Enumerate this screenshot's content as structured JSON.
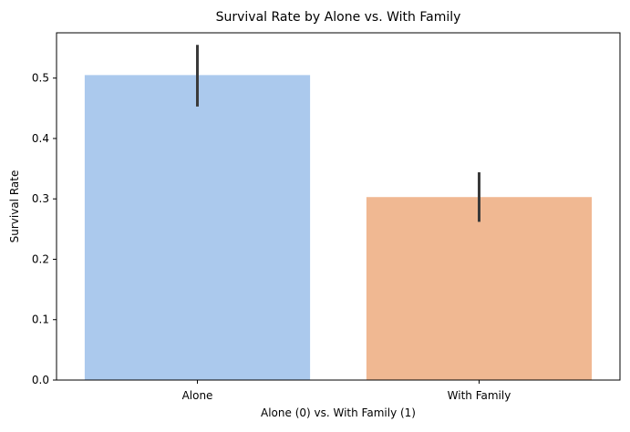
{
  "chart_data": {
    "type": "bar",
    "title": "Survival Rate by Alone vs. With Family",
    "xlabel": "Alone (0) vs. With Family (1)",
    "ylabel": "Survival Rate",
    "categories": [
      "Alone",
      "With Family"
    ],
    "values": [
      0.505,
      0.303
    ],
    "error_bars": [
      {
        "low": 0.453,
        "high": 0.555
      },
      {
        "low": 0.262,
        "high": 0.344
      }
    ],
    "colors": [
      "#abc9ed",
      "#f0b892"
    ],
    "error_bar_color": "#3a3a3a",
    "ylim": [
      0,
      0.575
    ],
    "yticks": [
      0.0,
      0.1,
      0.2,
      0.3,
      0.4,
      0.5
    ],
    "ytick_labels": [
      "0.0",
      "0.1",
      "0.2",
      "0.3",
      "0.4",
      "0.5"
    ],
    "grid": false,
    "legend": "none"
  }
}
